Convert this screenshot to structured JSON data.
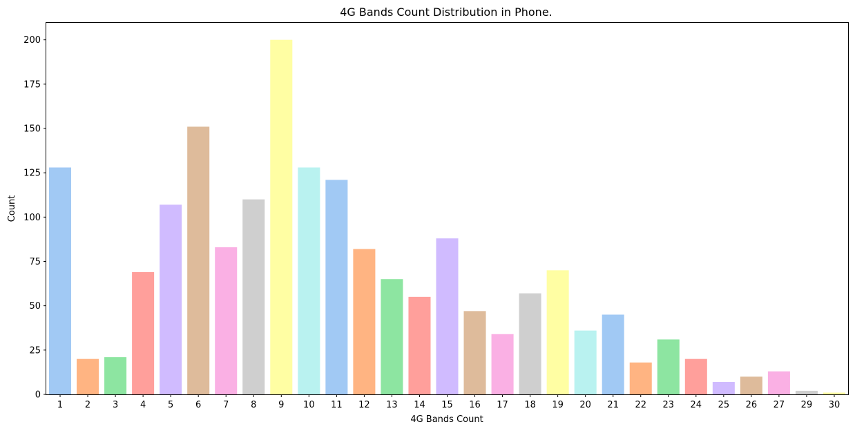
{
  "chart_data": {
    "type": "bar",
    "title": "4G Bands Count Distribution in Phone.",
    "xlabel": "4G Bands Count",
    "ylabel": "Count",
    "categories": [
      "1",
      "2",
      "3",
      "4",
      "5",
      "6",
      "7",
      "8",
      "9",
      "10",
      "11",
      "12",
      "13",
      "14",
      "15",
      "16",
      "17",
      "18",
      "19",
      "20",
      "21",
      "22",
      "23",
      "24",
      "25",
      "26",
      "27",
      "29",
      "30"
    ],
    "values": [
      128,
      20,
      21,
      69,
      107,
      151,
      83,
      110,
      200,
      128,
      121,
      82,
      65,
      55,
      88,
      47,
      34,
      57,
      70,
      36,
      45,
      18,
      31,
      20,
      7,
      10,
      13,
      2,
      1
    ],
    "ylim": [
      0,
      210
    ],
    "yticks": [
      0,
      25,
      50,
      75,
      100,
      125,
      150,
      175,
      200
    ],
    "grid": false,
    "legend": "none",
    "palette": [
      "#a1c9f4",
      "#ffb482",
      "#8de5a1",
      "#ff9f9b",
      "#d0bbff",
      "#debb9b",
      "#fab0e4",
      "#cfcfcf",
      "#fffea3",
      "#b9f2f0"
    ]
  }
}
